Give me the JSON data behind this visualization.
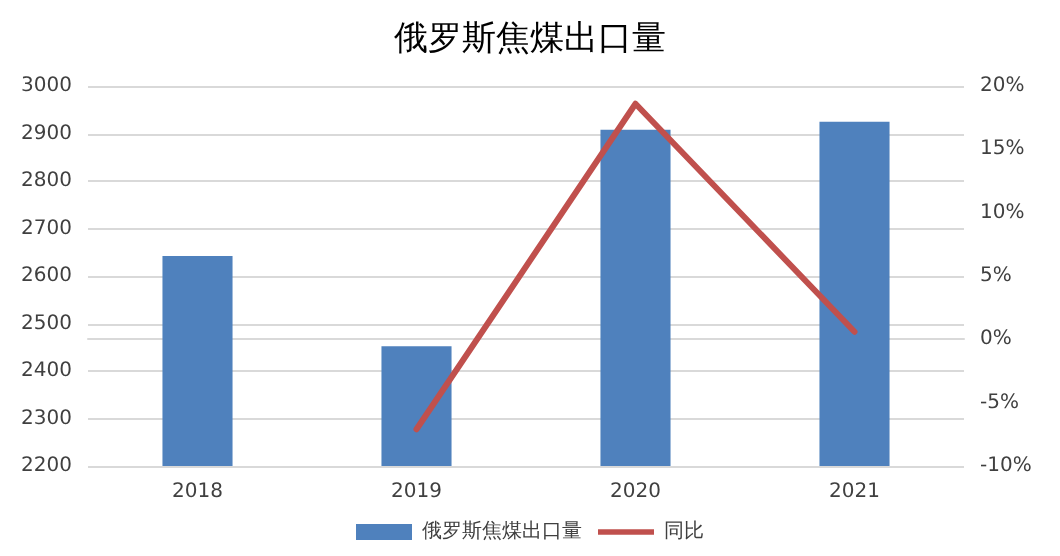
{
  "chart_data": {
    "type": "bar",
    "title": "俄罗斯焦煤出口量",
    "categories": [
      "2018",
      "2019",
      "2020",
      "2021"
    ],
    "series": [
      {
        "name": "俄罗斯焦煤出口量",
        "color": "#4f81bd",
        "values": [
          2642,
          2452,
          2908,
          2925
        ]
      },
      {
        "name": "同比",
        "type": "line",
        "axis": "y2",
        "color": "#c0504d",
        "values": [
          null,
          -7.1,
          18.6,
          0.6
        ]
      }
    ],
    "ylim": [
      2200,
      3000
    ],
    "yticks": [
      2200,
      2300,
      2400,
      2500,
      2600,
      2700,
      2800,
      2900,
      3000
    ],
    "y2lim": [
      -10,
      20
    ],
    "y2ticks": [
      {
        "value": -10,
        "label": "-10%"
      },
      {
        "value": -5,
        "label": "-5%"
      },
      {
        "value": 0,
        "label": "0%"
      },
      {
        "value": 5,
        "label": "5%"
      },
      {
        "value": 10,
        "label": "10%"
      },
      {
        "value": 15,
        "label": "15%"
      },
      {
        "value": 20,
        "label": "20%"
      }
    ],
    "grid": "y",
    "legend": "bottom",
    "marker": "none",
    "line_style": "solid"
  }
}
